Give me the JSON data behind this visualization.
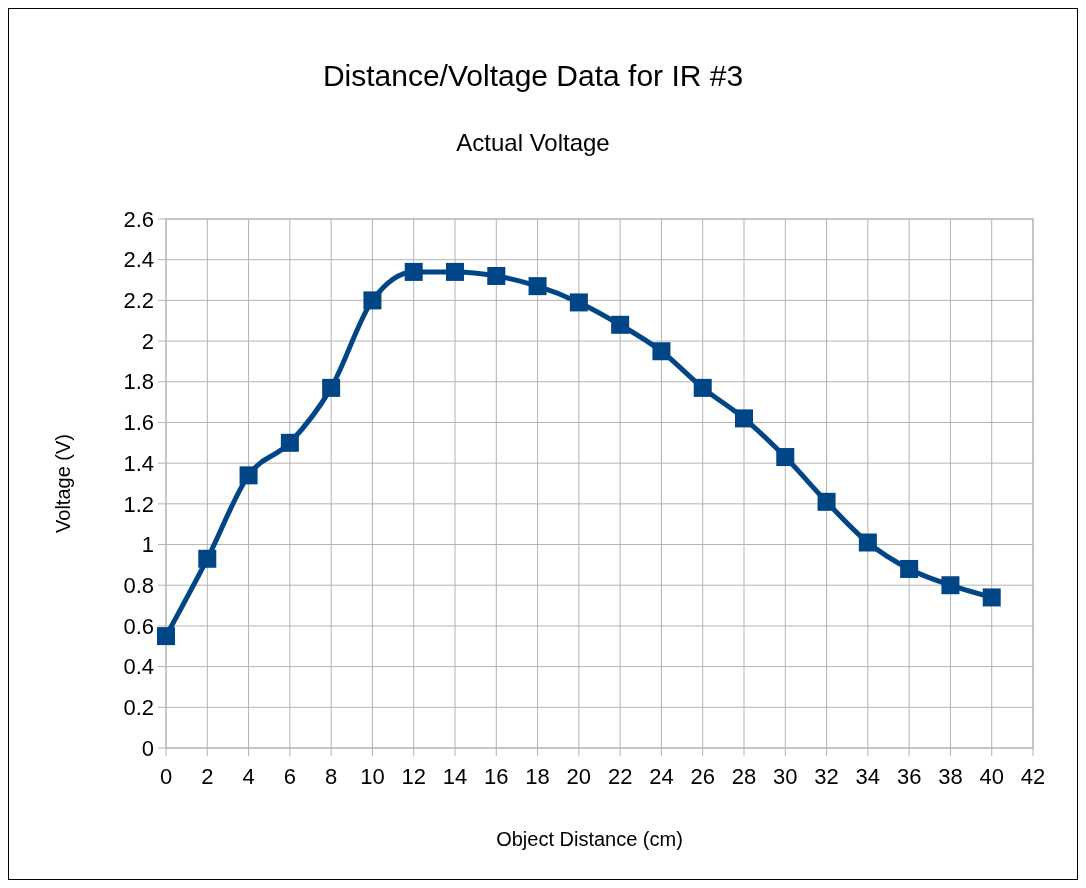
{
  "chart_data": {
    "type": "line",
    "title": "Distance/Voltage Data for IR #3",
    "subtitle": "Actual Voltage",
    "xlabel": "Object Distance (cm)",
    "ylabel": "Voltage (V)",
    "x": [
      0,
      2,
      4,
      6,
      8,
      10,
      12,
      14,
      16,
      18,
      20,
      22,
      24,
      26,
      28,
      30,
      32,
      34,
      36,
      38,
      40
    ],
    "series": [
      {
        "color": "#004586",
        "values": [
          0.55,
          0.93,
          1.34,
          1.5,
          1.77,
          2.2,
          2.34,
          2.34,
          2.32,
          2.27,
          2.19,
          2.08,
          1.95,
          1.77,
          1.62,
          1.43,
          1.21,
          1.01,
          0.88,
          0.8,
          0.74
        ]
      }
    ],
    "xlim": [
      0,
      42
    ],
    "xticks": [
      0,
      2,
      4,
      6,
      8,
      10,
      12,
      14,
      16,
      18,
      20,
      22,
      24,
      26,
      28,
      30,
      32,
      34,
      36,
      38,
      40,
      42
    ],
    "ylim": [
      0,
      2.6
    ],
    "yticks": [
      0,
      0.2,
      0.4,
      0.6,
      0.8,
      1,
      1.2,
      1.4,
      1.6,
      1.8,
      2,
      2.2,
      2.4,
      2.6
    ],
    "grid": true,
    "marker": "square",
    "line_style": "solid"
  }
}
